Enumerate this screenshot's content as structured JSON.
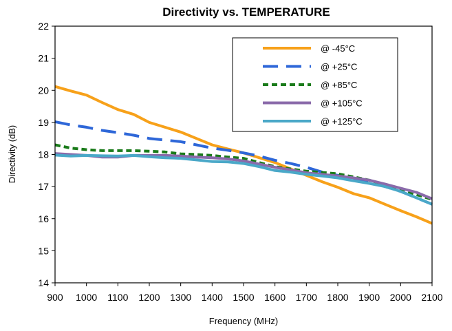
{
  "chart_data": {
    "type": "line",
    "title": "Directivity vs. TEMPERATURE",
    "xlabel": "Frequency (MHz)",
    "ylabel": "Directivity (dB)",
    "xlim": [
      900,
      2100
    ],
    "ylim": [
      14,
      22
    ],
    "xticks": [
      "900",
      "1000",
      "1100",
      "1200",
      "1300",
      "1400",
      "1500",
      "1600",
      "1700",
      "1800",
      "1900",
      "2000",
      "2100"
    ],
    "yticks": [
      "14",
      "15",
      "16",
      "17",
      "18",
      "19",
      "20",
      "21",
      "22"
    ],
    "grid": false,
    "legend_position": "top-right",
    "x": [
      900,
      950,
      1000,
      1050,
      1100,
      1150,
      1200,
      1250,
      1300,
      1350,
      1400,
      1450,
      1500,
      1550,
      1600,
      1650,
      1700,
      1750,
      1800,
      1850,
      1900,
      1950,
      2000,
      2050,
      2100
    ],
    "series": [
      {
        "name": "@ -45°C",
        "color": "#f7a11a",
        "dash": "solid",
        "values": [
          20.12,
          19.98,
          19.85,
          19.62,
          19.4,
          19.25,
          19.0,
          18.85,
          18.7,
          18.5,
          18.3,
          18.17,
          18.05,
          17.9,
          17.75,
          17.55,
          17.35,
          17.15,
          16.98,
          16.78,
          16.65,
          16.45,
          16.25,
          16.06,
          15.85
        ],
        "display_label": "@ -45°C"
      },
      {
        "name": "@ +25°C",
        "color": "#2e67d8",
        "dash": "long-dash",
        "values": [
          19.02,
          18.92,
          18.85,
          18.75,
          18.68,
          18.6,
          18.5,
          18.45,
          18.4,
          18.3,
          18.2,
          18.13,
          18.05,
          17.95,
          17.82,
          17.72,
          17.6,
          17.45,
          17.35,
          17.25,
          17.15,
          17.0,
          16.85,
          16.65,
          16.45
        ],
        "display_label": "@ +25°C"
      },
      {
        "name": "@ +85°C",
        "color": "#1a7b1a",
        "dash": "dashed",
        "values": [
          18.3,
          18.2,
          18.15,
          18.12,
          18.12,
          18.12,
          18.1,
          18.08,
          18.02,
          18.0,
          17.97,
          17.92,
          17.88,
          17.75,
          17.62,
          17.55,
          17.48,
          17.44,
          17.4,
          17.3,
          17.2,
          17.05,
          16.9,
          16.75,
          16.6
        ],
        "display_label": "@ +85°C"
      },
      {
        "name": "@ +105°C",
        "color": "#8a6aaa",
        "dash": "solid",
        "values": [
          18.03,
          18.0,
          17.97,
          17.92,
          17.92,
          17.97,
          17.97,
          17.97,
          17.95,
          17.92,
          17.9,
          17.86,
          17.8,
          17.7,
          17.6,
          17.52,
          17.43,
          17.38,
          17.33,
          17.27,
          17.2,
          17.08,
          16.95,
          16.82,
          16.62
        ],
        "display_label": "@ +105°C"
      },
      {
        "name": "@ +125°C",
        "color": "#4aa8c8",
        "dash": "solid",
        "values": [
          17.98,
          17.95,
          17.97,
          17.96,
          17.95,
          17.97,
          17.93,
          17.9,
          17.88,
          17.83,
          17.78,
          17.77,
          17.72,
          17.62,
          17.5,
          17.45,
          17.38,
          17.33,
          17.27,
          17.18,
          17.1,
          17.0,
          16.85,
          16.65,
          16.45
        ],
        "display_label": "@ +125°C"
      }
    ]
  }
}
